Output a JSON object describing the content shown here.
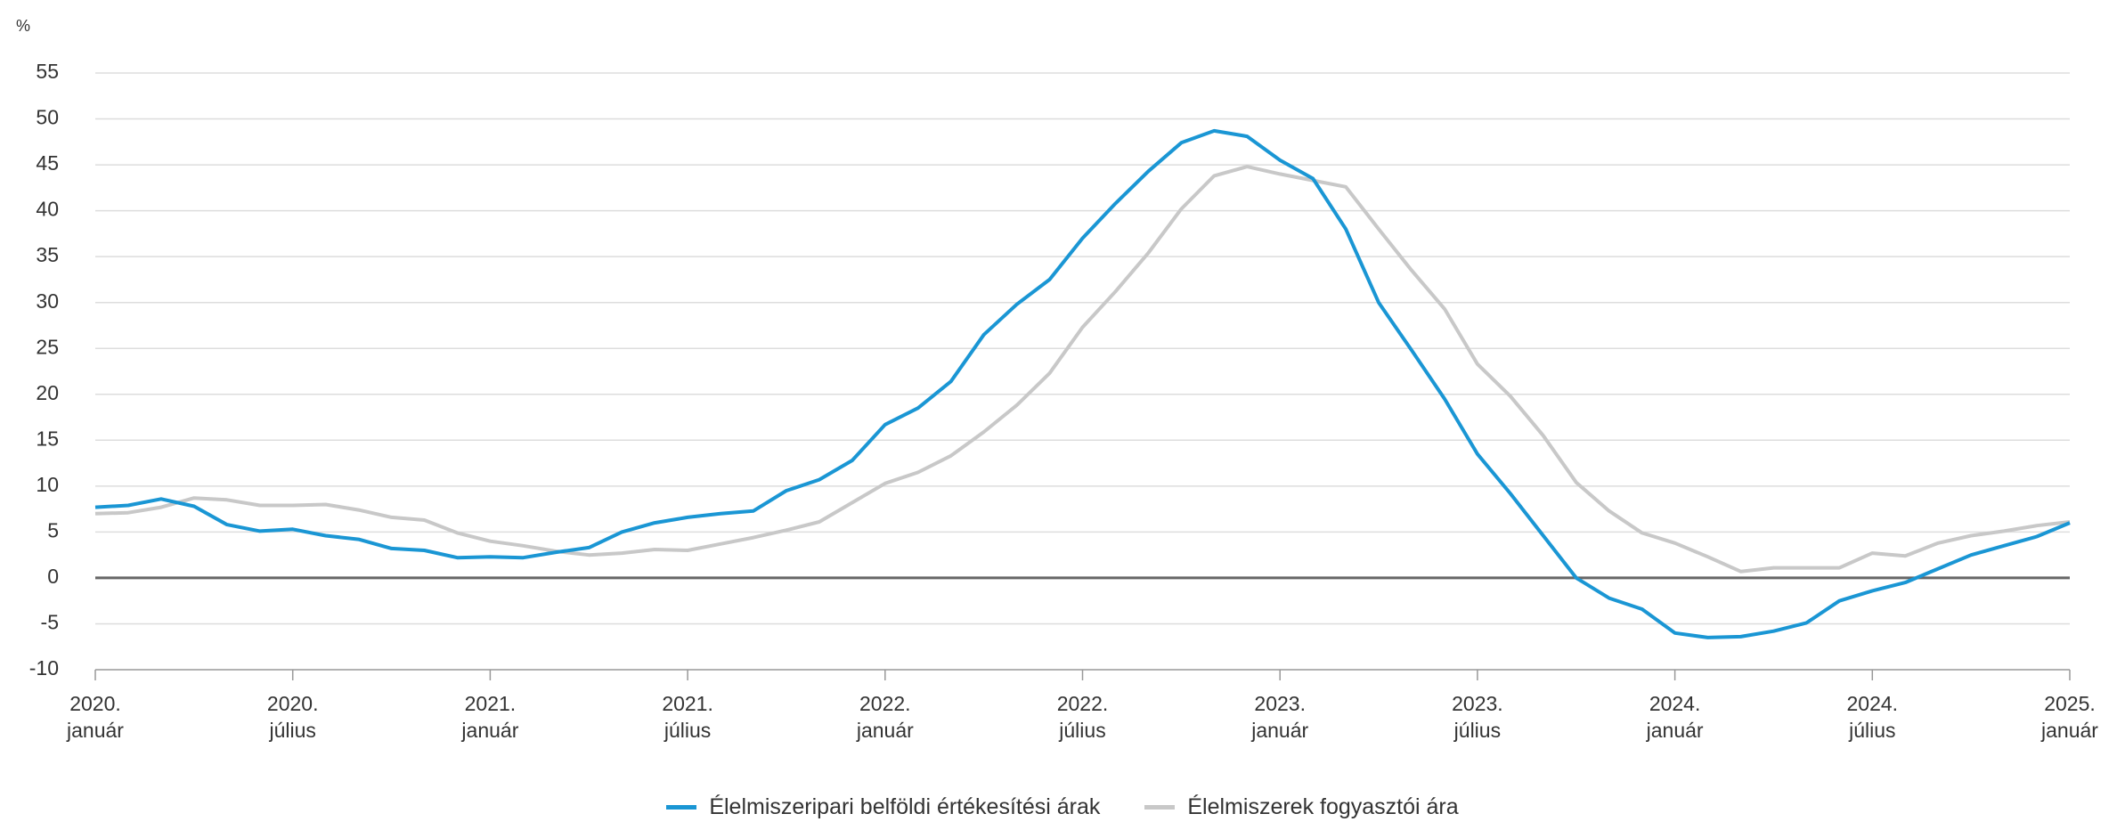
{
  "chart_data": {
    "type": "line",
    "y_unit": "%",
    "categories": [
      "2020. január",
      null,
      null,
      null,
      null,
      null,
      "2020. július",
      null,
      null,
      null,
      null,
      null,
      "2021. január",
      null,
      null,
      null,
      null,
      null,
      "2021. július",
      null,
      null,
      null,
      null,
      null,
      "2022. január",
      null,
      null,
      null,
      null,
      null,
      "2022. július",
      null,
      null,
      null,
      null,
      null,
      "2023. január",
      null,
      null,
      null,
      null,
      null,
      "2023. július",
      null,
      null,
      null,
      null,
      null,
      "2024. január",
      null,
      null,
      null,
      null,
      null,
      "2024. július",
      null,
      null,
      null,
      null,
      null,
      "2025. január"
    ],
    "series": [
      {
        "name": "Élelmiszeripari belföldi értékesítési árak",
        "color": "#1a96d4",
        "values": [
          7.7,
          7.9,
          8.6,
          7.8,
          5.8,
          5.1,
          5.3,
          4.6,
          4.2,
          3.2,
          3.0,
          2.2,
          2.3,
          2.2,
          2.8,
          3.3,
          5.0,
          6.0,
          6.6,
          7.0,
          7.3,
          9.5,
          10.7,
          12.8,
          16.7,
          18.5,
          21.4,
          26.5,
          29.8,
          32.5,
          37.0,
          40.8,
          44.3,
          47.4,
          48.7,
          48.1,
          45.5,
          43.5,
          38.0,
          30.0,
          24.8,
          19.5,
          13.5,
          9.2,
          4.6,
          0.0,
          -2.2,
          -3.4,
          -6.0,
          -6.5,
          -6.4,
          -5.8,
          -4.9,
          -2.5,
          -1.4,
          -0.5,
          1.0,
          2.5,
          3.5,
          4.5,
          6.0
        ]
      },
      {
        "name": "Élelmiszerek fogyasztói ára",
        "color": "#c8c8c8",
        "values": [
          7.0,
          7.1,
          7.7,
          8.7,
          8.5,
          7.9,
          7.9,
          8.0,
          7.4,
          6.6,
          6.3,
          4.9,
          4.0,
          3.5,
          2.9,
          2.5,
          2.7,
          3.1,
          3.0,
          3.7,
          4.4,
          5.2,
          6.1,
          8.2,
          10.3,
          11.5,
          13.3,
          15.9,
          18.8,
          22.3,
          27.3,
          31.2,
          35.4,
          40.2,
          43.8,
          44.8,
          44.0,
          43.3,
          42.6,
          38.0,
          33.5,
          29.3,
          23.3,
          19.8,
          15.5,
          10.4,
          7.3,
          4.9,
          3.8,
          2.3,
          0.7,
          1.1,
          1.1,
          1.1,
          2.7,
          2.4,
          3.8,
          4.6,
          5.1,
          5.7,
          6.1
        ]
      }
    ],
    "ylim": [
      -10,
      55
    ],
    "yticks": [
      -10,
      -5,
      0,
      5,
      10,
      15,
      20,
      25,
      30,
      35,
      40,
      45,
      50,
      55
    ],
    "grid": true,
    "legend": "bottom"
  }
}
